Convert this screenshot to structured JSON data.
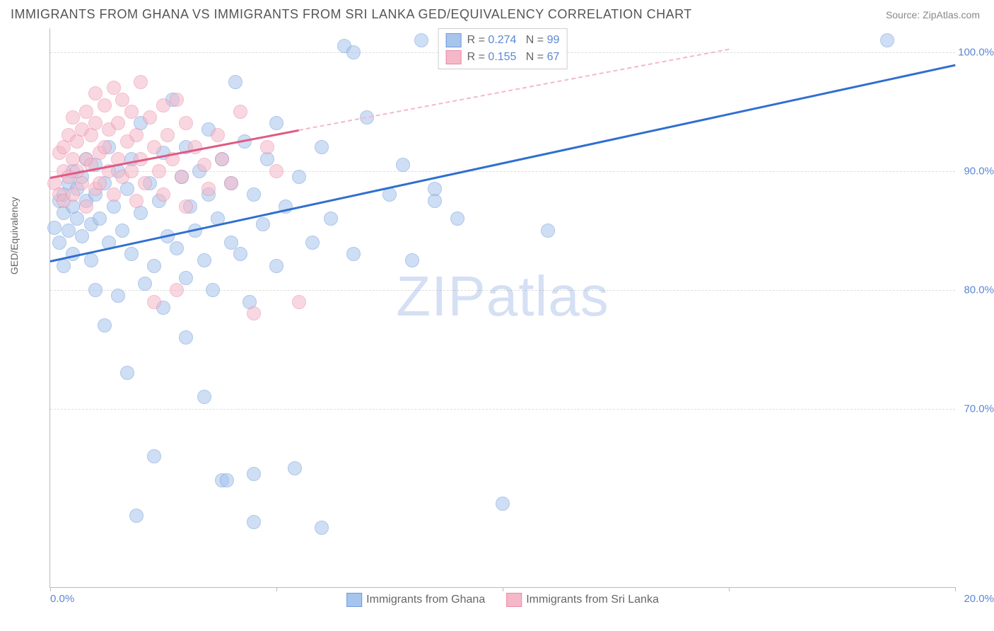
{
  "header": {
    "title": "IMMIGRANTS FROM GHANA VS IMMIGRANTS FROM SRI LANKA GED/EQUIVALENCY CORRELATION CHART",
    "source": "Source: ZipAtlas.com"
  },
  "chart": {
    "type": "scatter",
    "ylabel": "GED/Equivalency",
    "watermark_a": "ZIP",
    "watermark_b": "atlas",
    "background_color": "#ffffff",
    "grid_color": "#dddddd",
    "axis_color": "#bbbbbb",
    "tick_label_color": "#5b87d6",
    "x_range": [
      0,
      20
    ],
    "y_range": [
      55,
      102
    ],
    "y_ticks": [
      70,
      80,
      90,
      100
    ],
    "y_tick_labels": [
      "70.0%",
      "80.0%",
      "90.0%",
      "100.0%"
    ],
    "x_major_ticks": [
      0,
      5,
      10,
      15,
      20
    ],
    "x_end_labels": [
      "0.0%",
      "20.0%"
    ],
    "marker_size": 18,
    "marker_opacity": 0.55,
    "series": [
      {
        "name": "Immigrants from Ghana",
        "fill": "#a7c4ec",
        "border": "#6f9ad8",
        "line_color": "#2f6fd0",
        "line_width": 3,
        "line_style": "solid",
        "regression": {
          "x1": 0,
          "y1": 82.5,
          "x2": 20,
          "y2": 99.0,
          "dash_after_x": 20
        },
        "stats": {
          "R": "0.274",
          "N": "99"
        },
        "points": [
          [
            0.1,
            85.2
          ],
          [
            0.2,
            87.5
          ],
          [
            0.2,
            84.0
          ],
          [
            0.3,
            86.5
          ],
          [
            0.3,
            88.0
          ],
          [
            0.3,
            82.0
          ],
          [
            0.4,
            89.0
          ],
          [
            0.4,
            85.0
          ],
          [
            0.5,
            87.0
          ],
          [
            0.5,
            90.0
          ],
          [
            0.5,
            83.0
          ],
          [
            0.6,
            88.5
          ],
          [
            0.6,
            86.0
          ],
          [
            0.7,
            89.5
          ],
          [
            0.7,
            84.5
          ],
          [
            0.8,
            91.0
          ],
          [
            0.8,
            87.5
          ],
          [
            0.9,
            85.5
          ],
          [
            0.9,
            82.5
          ],
          [
            1.0,
            88.0
          ],
          [
            1.0,
            90.5
          ],
          [
            1.0,
            80.0
          ],
          [
            1.1,
            86.0
          ],
          [
            1.2,
            89.0
          ],
          [
            1.2,
            77.0
          ],
          [
            1.3,
            92.0
          ],
          [
            1.3,
            84.0
          ],
          [
            1.4,
            87.0
          ],
          [
            1.5,
            90.0
          ],
          [
            1.5,
            79.5
          ],
          [
            1.6,
            85.0
          ],
          [
            1.7,
            88.5
          ],
          [
            1.7,
            73.0
          ],
          [
            1.8,
            91.0
          ],
          [
            1.8,
            83.0
          ],
          [
            1.9,
            61.0
          ],
          [
            2.0,
            86.5
          ],
          [
            2.0,
            94.0
          ],
          [
            2.1,
            80.5
          ],
          [
            2.2,
            89.0
          ],
          [
            2.3,
            82.0
          ],
          [
            2.3,
            66.0
          ],
          [
            2.4,
            87.5
          ],
          [
            2.5,
            91.5
          ],
          [
            2.5,
            78.5
          ],
          [
            2.6,
            84.5
          ],
          [
            2.7,
            96.0
          ],
          [
            2.8,
            83.5
          ],
          [
            2.9,
            89.5
          ],
          [
            3.0,
            81.0
          ],
          [
            3.0,
            92.0
          ],
          [
            3.0,
            76.0
          ],
          [
            3.1,
            87.0
          ],
          [
            3.2,
            85.0
          ],
          [
            3.3,
            90.0
          ],
          [
            3.4,
            82.5
          ],
          [
            3.4,
            71.0
          ],
          [
            3.5,
            88.0
          ],
          [
            3.5,
            93.5
          ],
          [
            3.6,
            80.0
          ],
          [
            3.7,
            86.0
          ],
          [
            3.8,
            91.0
          ],
          [
            3.8,
            64.0
          ],
          [
            4.0,
            84.0
          ],
          [
            4.0,
            89.0
          ],
          [
            4.1,
            97.5
          ],
          [
            4.2,
            83.0
          ],
          [
            4.3,
            92.5
          ],
          [
            4.4,
            79.0
          ],
          [
            4.5,
            88.0
          ],
          [
            4.5,
            64.5
          ],
          [
            4.5,
            60.5
          ],
          [
            4.7,
            85.5
          ],
          [
            4.8,
            91.0
          ],
          [
            5.0,
            82.0
          ],
          [
            5.0,
            94.0
          ],
          [
            5.2,
            87.0
          ],
          [
            5.4,
            65.0
          ],
          [
            5.5,
            89.5
          ],
          [
            5.8,
            84.0
          ],
          [
            6.0,
            92.0
          ],
          [
            6.0,
            60.0
          ],
          [
            6.2,
            86.0
          ],
          [
            6.5,
            100.5
          ],
          [
            6.7,
            83.0
          ],
          [
            6.7,
            100.0
          ],
          [
            7.0,
            94.5
          ],
          [
            7.5,
            88.0
          ],
          [
            7.8,
            90.5
          ],
          [
            8.0,
            82.5
          ],
          [
            8.2,
            101.0
          ],
          [
            8.5,
            87.5
          ],
          [
            8.5,
            88.5
          ],
          [
            9.0,
            86.0
          ],
          [
            9.5,
            101.0
          ],
          [
            10.0,
            62.0
          ],
          [
            11.0,
            85.0
          ],
          [
            18.5,
            101.0
          ],
          [
            3.9,
            64.0
          ]
        ]
      },
      {
        "name": "Immigrants from Sri Lanka",
        "fill": "#f5b8c8",
        "border": "#e88aa5",
        "line_color": "#e05a84",
        "line_width": 3,
        "line_style": "solid",
        "regression": {
          "x1": 0,
          "y1": 89.5,
          "x2": 5.5,
          "y2": 93.5,
          "dash_after_x": 5.5,
          "dash_to_x": 15,
          "dash_to_y": 100.3
        },
        "stats": {
          "R": "0.155",
          "N": "67"
        },
        "points": [
          [
            0.1,
            89.0
          ],
          [
            0.2,
            91.5
          ],
          [
            0.2,
            88.0
          ],
          [
            0.3,
            92.0
          ],
          [
            0.3,
            90.0
          ],
          [
            0.3,
            87.5
          ],
          [
            0.4,
            93.0
          ],
          [
            0.4,
            89.5
          ],
          [
            0.5,
            91.0
          ],
          [
            0.5,
            94.5
          ],
          [
            0.5,
            88.0
          ],
          [
            0.6,
            92.5
          ],
          [
            0.6,
            90.0
          ],
          [
            0.7,
            93.5
          ],
          [
            0.7,
            89.0
          ],
          [
            0.8,
            95.0
          ],
          [
            0.8,
            91.0
          ],
          [
            0.8,
            87.0
          ],
          [
            0.9,
            93.0
          ],
          [
            0.9,
            90.5
          ],
          [
            1.0,
            94.0
          ],
          [
            1.0,
            88.5
          ],
          [
            1.0,
            96.5
          ],
          [
            1.1,
            91.5
          ],
          [
            1.1,
            89.0
          ],
          [
            1.2,
            95.5
          ],
          [
            1.2,
            92.0
          ],
          [
            1.3,
            90.0
          ],
          [
            1.3,
            93.5
          ],
          [
            1.4,
            88.0
          ],
          [
            1.4,
            97.0
          ],
          [
            1.5,
            91.0
          ],
          [
            1.5,
            94.0
          ],
          [
            1.6,
            89.5
          ],
          [
            1.6,
            96.0
          ],
          [
            1.7,
            92.5
          ],
          [
            1.8,
            90.0
          ],
          [
            1.8,
            95.0
          ],
          [
            1.9,
            87.5
          ],
          [
            1.9,
            93.0
          ],
          [
            2.0,
            91.0
          ],
          [
            2.0,
            97.5
          ],
          [
            2.1,
            89.0
          ],
          [
            2.2,
            94.5
          ],
          [
            2.3,
            79.0
          ],
          [
            2.3,
            92.0
          ],
          [
            2.4,
            90.0
          ],
          [
            2.5,
            95.5
          ],
          [
            2.5,
            88.0
          ],
          [
            2.6,
            93.0
          ],
          [
            2.7,
            91.0
          ],
          [
            2.8,
            80.0
          ],
          [
            2.8,
            96.0
          ],
          [
            2.9,
            89.5
          ],
          [
            3.0,
            94.0
          ],
          [
            3.0,
            87.0
          ],
          [
            3.2,
            92.0
          ],
          [
            3.4,
            90.5
          ],
          [
            3.5,
            88.5
          ],
          [
            3.7,
            93.0
          ],
          [
            3.8,
            91.0
          ],
          [
            4.0,
            89.0
          ],
          [
            4.2,
            95.0
          ],
          [
            4.5,
            78.0
          ],
          [
            4.8,
            92.0
          ],
          [
            5.0,
            90.0
          ],
          [
            5.5,
            79.0
          ]
        ]
      }
    ]
  }
}
